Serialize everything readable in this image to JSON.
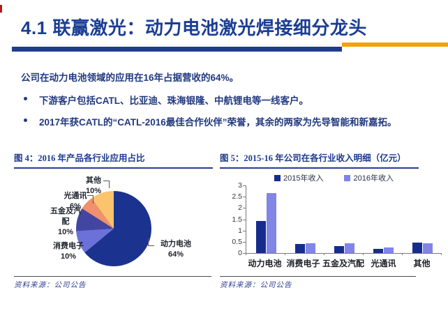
{
  "header": {
    "title": "4.1 联赢激光：动力电池激光焊接细分龙头"
  },
  "intro": "公司在动力电池领域的应用在16年占据营收的64%。",
  "bullets": [
    "下游客户包括CATL、比亚迪、珠海银隆、中航锂电等一线客户。",
    "2017年获CATL的“CATL-2016最佳合作伙伴”荣誉，其余的两家为先导智能和新嘉拓。"
  ],
  "figure4": {
    "caption_prefix": "图 4：",
    "caption": "2016 年产品各行业应用占比",
    "source": "资料来源：公司公告"
  },
  "figure5": {
    "caption_prefix": "图 5：",
    "caption": "2015-16 年公司在各行业收入明细（亿元）",
    "source": "资料来源：公司公告"
  },
  "colors": {
    "title_blue": "#1b3e94",
    "underline_blue": "#1f3c8f",
    "underline_orange": "#f2a20c",
    "body_text_blue": "#21397f",
    "caption_blue": "#1e3a8c"
  },
  "chart_data": [
    {
      "type": "pie",
      "title": "2016 年产品各行业应用占比",
      "start_angle_deg": 0,
      "direction": "clockwise",
      "slices": [
        {
          "label": "动力电池",
          "pct": 64,
          "pct_text": "64%",
          "color": "#1b338f"
        },
        {
          "label": "消费电子",
          "pct": 10,
          "pct_text": "10%",
          "color": "#6c71d9"
        },
        {
          "label": "五金及汽配",
          "pct": 10,
          "pct_text": "10%",
          "color": "#4346a0"
        },
        {
          "label": "光通讯",
          "pct": 6,
          "pct_text": "6%",
          "color": "#f0906c"
        },
        {
          "label": "其他",
          "pct": 10,
          "pct_text": "10%",
          "color": "#fac36e"
        }
      ]
    },
    {
      "type": "bar",
      "title": "2015-16 年公司在各行业收入明细（亿元）",
      "categories": [
        "动力电池",
        "消费电子",
        "五金及汽配",
        "光通讯",
        "其他"
      ],
      "series": [
        {
          "name": "2015年收入",
          "color": "#152c8c",
          "values": [
            1.42,
            0.4,
            0.31,
            0.19,
            0.47
          ]
        },
        {
          "name": "2016年收入",
          "color": "#8085e6",
          "values": [
            2.67,
            0.44,
            0.42,
            0.26,
            0.42
          ]
        }
      ],
      "ylim": [
        0,
        3
      ],
      "yticks": [
        0,
        0.5,
        1,
        1.5,
        2,
        2.5,
        3
      ],
      "grid": false,
      "legend_position": "top"
    }
  ]
}
